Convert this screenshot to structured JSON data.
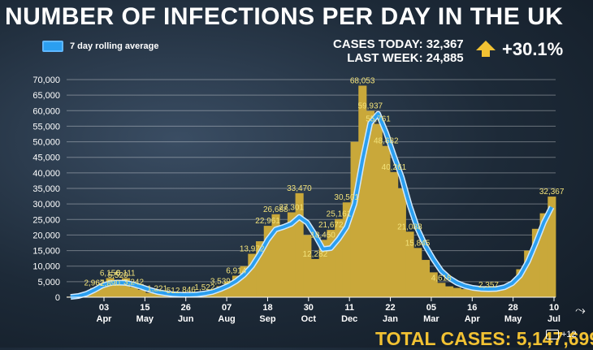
{
  "header": {
    "title": "NUMBER OF INFECTIONS PER DAY IN THE UK",
    "legend_label": "7 day rolling average",
    "cases_today": "CASES TODAY: 32,367",
    "last_week": "LAST WEEK: 24,885",
    "change": "+30.1%",
    "total_cases": "TOTAL CASES: 5,147,699",
    "photo_count": "+12"
  },
  "colors": {
    "bars": "#c9a83a",
    "line": "#2b9ff0",
    "line_outline": "#cfe9ff",
    "labels": "#f2e27a",
    "arrow": "#f2c233"
  },
  "chart_data": {
    "type": "bar",
    "title": "NUMBER OF INFECTIONS PER DAY IN THE UK",
    "ylim": [
      0,
      70000
    ],
    "yticks": [
      "0",
      "5,000",
      "10,000",
      "15,000",
      "20,000",
      "25,000",
      "30,000",
      "35,000",
      "40,000",
      "45,000",
      "50,000",
      "55,000",
      "60,000",
      "65,000",
      "70,000"
    ],
    "xticks": [
      {
        "day": "03",
        "month": "Apr"
      },
      {
        "day": "15",
        "month": "May"
      },
      {
        "day": "26",
        "month": "Jun"
      },
      {
        "day": "07",
        "month": "Aug"
      },
      {
        "day": "18",
        "month": "Sep"
      },
      {
        "day": "30",
        "month": "Oct"
      },
      {
        "day": "11",
        "month": "Dec"
      },
      {
        "day": "22",
        "month": "Jan"
      },
      {
        "day": "05",
        "month": "Mar"
      },
      {
        "day": "16",
        "month": "Apr"
      },
      {
        "day": "28",
        "month": "May"
      },
      {
        "day": "10",
        "month": "Jul"
      }
    ],
    "daily_cases_series": [
      200,
      600,
      1500,
      2967,
      4500,
      6150,
      5520,
      6111,
      3242,
      2400,
      1400,
      1221,
      900,
      512,
      700,
      846,
      1000,
      1522,
      2500,
      3539,
      5000,
      6914,
      10000,
      13972,
      18000,
      22961,
      26688,
      23000,
      27301,
      33470,
      20000,
      12282,
      18450,
      21672,
      25161,
      30501,
      50000,
      68053,
      59937,
      55761,
      48682,
      40261,
      35000,
      21088,
      15845,
      12000,
      8000,
      4618,
      3500,
      3000,
      2600,
      2400,
      2200,
      2357,
      2600,
      3500,
      5000,
      9000,
      15000,
      22000,
      27000,
      32367
    ],
    "rolling_average_series": [
      100,
      400,
      1100,
      2300,
      3700,
      4500,
      4700,
      4600,
      4100,
      3300,
      2400,
      1700,
      1250,
      950,
      800,
      780,
      900,
      1200,
      1700,
      2600,
      3700,
      5200,
      7200,
      10000,
      14000,
      18500,
      21800,
      22600,
      23600,
      25800,
      24000,
      20000,
      15500,
      15800,
      18800,
      22600,
      30000,
      44000,
      56000,
      59000,
      53000,
      45500,
      38500,
      29500,
      22000,
      16500,
      12200,
      8500,
      6200,
      4600,
      3600,
      3000,
      2700,
      2600,
      2700,
      3200,
      4500,
      7000,
      11500,
      17500,
      24000,
      29000
    ],
    "data_labels": [
      "2,967",
      "2,890",
      "6,150",
      "5,520",
      "6,111",
      "3,242",
      "1,221",
      "512",
      "846",
      "1,522",
      "3,539",
      "6,914",
      "13,972",
      "22,961",
      "26,688",
      "27,301",
      "33,470",
      "12,282",
      "18,450",
      "21,672",
      "25,161",
      "30,501",
      "68,053",
      "59,937",
      "55,761",
      "48,682",
      "40,261",
      "21,088",
      "15,845",
      "4,618",
      "2,357",
      "32,367"
    ]
  }
}
